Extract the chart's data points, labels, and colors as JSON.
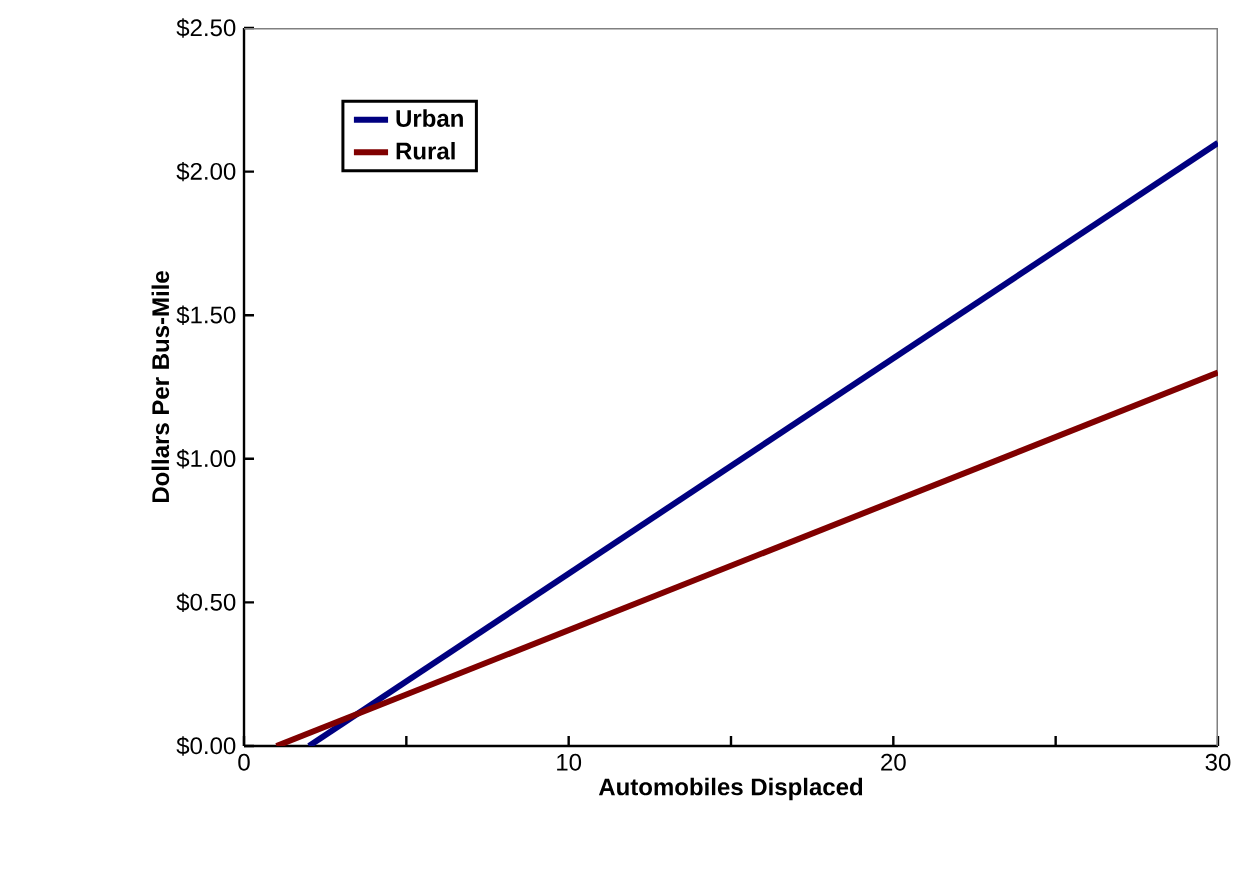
{
  "chart_data": {
    "type": "line",
    "xlabel": "Automobiles Displaced",
    "ylabel": "Dollars Per Bus-Mile",
    "series": [
      {
        "name": "Urban",
        "color": "#000080",
        "x": [
          2,
          30
        ],
        "values": [
          0,
          2.1
        ]
      },
      {
        "name": "Rural",
        "color": "#800000",
        "x": [
          1,
          30
        ],
        "values": [
          0,
          1.3
        ]
      }
    ],
    "xlim": [
      0,
      30
    ],
    "xticks": [
      0,
      {
        "value": 5,
        "label": null
      },
      10,
      {
        "value": 15,
        "label": null
      },
      20,
      {
        "value": 25,
        "label": null
      },
      30
    ],
    "ylim": [
      0,
      2.5
    ],
    "yticks": [
      {
        "value": 0,
        "label": "$0.00"
      },
      {
        "value": 0.5,
        "label": "$0.50"
      },
      {
        "value": 1,
        "label": "$1.00"
      },
      {
        "value": 1.5,
        "label": "$1.50"
      },
      {
        "value": 2,
        "label": "$2.00"
      },
      {
        "value": 2.5,
        "label": "$2.50"
      }
    ],
    "grid": false,
    "legend": "top left",
    "marker": "none",
    "line_style": "solid"
  }
}
